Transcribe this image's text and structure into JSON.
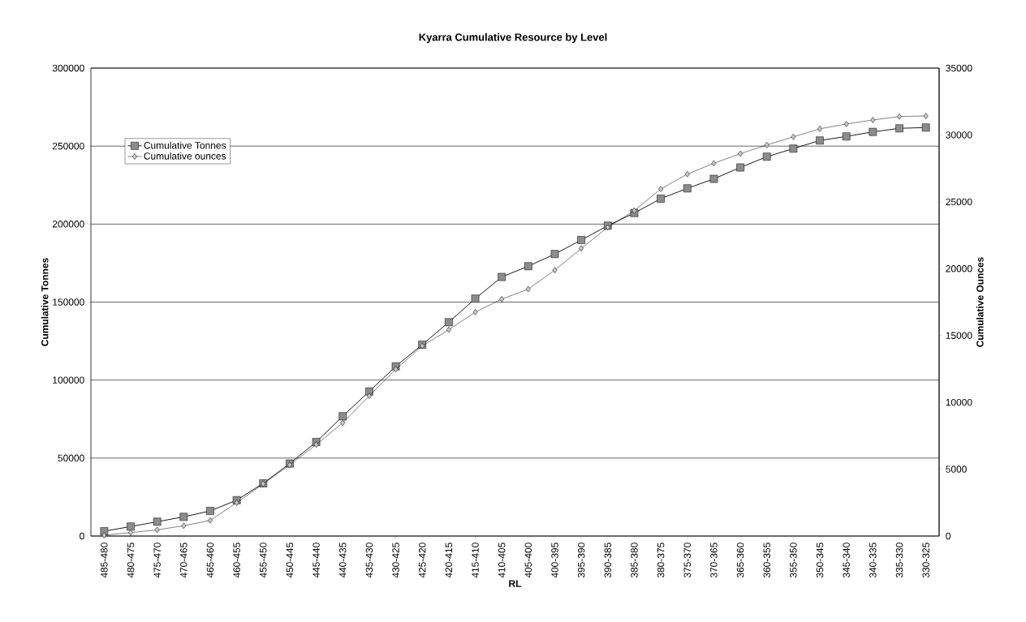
{
  "chart_data": {
    "type": "line",
    "title": "Kyarra Cumulative Resource by Level",
    "xlabel": "RL",
    "ylabel": "Cumulative Tonnes",
    "y2label": "Cumulative Ounces",
    "categories": [
      "485-480",
      "480-475",
      "475-470",
      "470-465",
      "465-460",
      "460-455",
      "455-450",
      "450-445",
      "445-440",
      "440-435",
      "435-430",
      "430-425",
      "425-420",
      "420-415",
      "415-410",
      "410-405",
      "405-400",
      "400-395",
      "395-390",
      "390-385",
      "385-380",
      "380-375",
      "375-370",
      "370-365",
      "365-360",
      "360-355",
      "355-350",
      "350-345",
      "345-340",
      "340-335",
      "335-330",
      "330-325"
    ],
    "series": [
      {
        "name": "Cumulative Tonnes",
        "color": "#8c8c8c",
        "marker": "square",
        "values": [
          3100,
          6100,
          9200,
          12300,
          16100,
          23000,
          33800,
          46500,
          60300,
          76800,
          92700,
          108800,
          122700,
          137100,
          152200,
          166100,
          173000,
          180800,
          189800,
          199000,
          207100,
          216300,
          222900,
          229000,
          236300,
          243200,
          248400,
          253600,
          256200,
          259100,
          261400,
          261900
        ]
      },
      {
        "name": "Cumulative ounces",
        "color": "#c8c8c8",
        "marker": "diamond",
        "axis": "y2",
        "values": [
          60,
          260,
          460,
          770,
          1170,
          2490,
          3900,
          5320,
          6840,
          8460,
          10480,
          12480,
          14220,
          15430,
          16750,
          17720,
          18470,
          19890,
          21510,
          23090,
          24340,
          25960,
          27070,
          27880,
          28600,
          29250,
          29860,
          30460,
          30820,
          31120,
          31380,
          31420
        ]
      }
    ],
    "ylim": [
      0,
      300000
    ],
    "yticks": [
      0,
      50000,
      100000,
      150000,
      200000,
      250000,
      300000
    ],
    "y2lim": [
      0,
      35000
    ],
    "y2ticks": [
      0,
      5000,
      10000,
      15000,
      20000,
      25000,
      30000,
      35000
    ],
    "grid": "y",
    "legend": "top left"
  }
}
